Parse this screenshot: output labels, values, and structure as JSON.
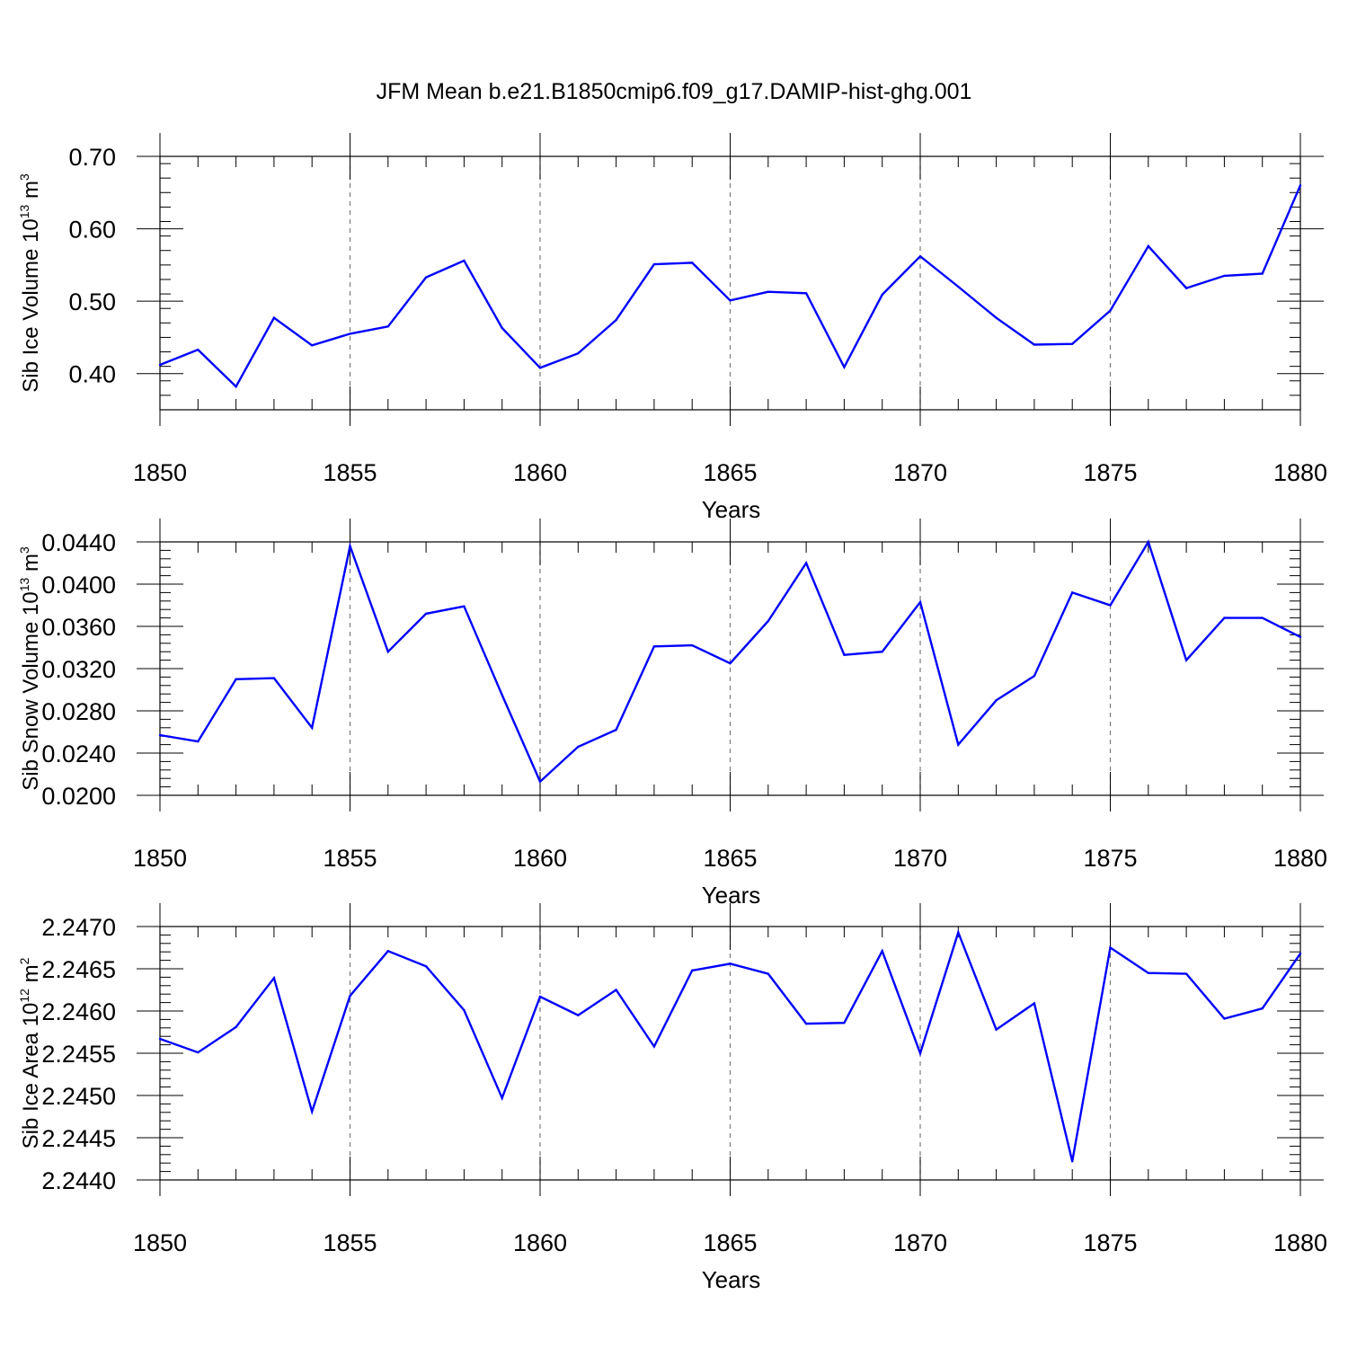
{
  "chart_data": [
    {
      "type": "line",
      "title": "JFM Mean b.e21.B1850cmip6.f09_g17.DAMIP-hist-ghg.001",
      "ylabel": {
        "main": "Sib Ice Volume 10",
        "exp1": "13",
        "unit": " m",
        "exp2": "3"
      },
      "xlabel": "Years",
      "x": [
        1850,
        1851,
        1852,
        1853,
        1854,
        1855,
        1856,
        1857,
        1858,
        1859,
        1860,
        1861,
        1862,
        1863,
        1864,
        1865,
        1866,
        1867,
        1868,
        1869,
        1870,
        1871,
        1872,
        1873,
        1874,
        1875,
        1876,
        1877,
        1878,
        1879,
        1880
      ],
      "values": [
        0.412,
        0.433,
        0.382,
        0.477,
        0.439,
        0.455,
        0.465,
        0.533,
        0.556,
        0.463,
        0.408,
        0.428,
        0.474,
        0.551,
        0.553,
        0.501,
        0.513,
        0.511,
        0.409,
        0.509,
        0.562,
        0.52,
        0.477,
        0.44,
        0.441,
        0.487,
        0.576,
        0.518,
        0.535,
        0.538,
        0.66
      ],
      "xlim": [
        1850,
        1880
      ],
      "ylim": [
        0.35,
        0.7
      ],
      "xticks": [
        1850,
        1855,
        1860,
        1865,
        1870,
        1875,
        1880
      ],
      "xtick_labels": [
        "1850",
        "1855",
        "1860",
        "1865",
        "1870",
        "1875",
        "1880"
      ],
      "yticks": [
        0.4,
        0.5,
        0.6,
        0.7
      ],
      "ytick_labels": [
        "0.40",
        "0.50",
        "0.60",
        "0.70"
      ],
      "line_color": "#0000ff",
      "grid": "vertical dashed at major x ticks"
    },
    {
      "type": "line",
      "title": "",
      "ylabel": {
        "main": "Sib Snow Volume 10",
        "exp1": "13",
        "unit": " m",
        "exp2": "3"
      },
      "xlabel": "Years",
      "x": [
        1850,
        1851,
        1852,
        1853,
        1854,
        1855,
        1856,
        1857,
        1858,
        1859,
        1860,
        1861,
        1862,
        1863,
        1864,
        1865,
        1866,
        1867,
        1868,
        1869,
        1870,
        1871,
        1872,
        1873,
        1874,
        1875,
        1876,
        1877,
        1878,
        1879,
        1880
      ],
      "values": [
        0.0257,
        0.0251,
        0.031,
        0.0311,
        0.0264,
        0.0436,
        0.0336,
        0.0372,
        0.0379,
        0.0295,
        0.0213,
        0.0246,
        0.0262,
        0.0341,
        0.0342,
        0.0325,
        0.0365,
        0.042,
        0.0333,
        0.0336,
        0.0383,
        0.0248,
        0.029,
        0.0313,
        0.0392,
        0.038,
        0.044,
        0.0328,
        0.0368,
        0.0368,
        0.035
      ],
      "xlim": [
        1850,
        1880
      ],
      "ylim": [
        0.02,
        0.044
      ],
      "xticks": [
        1850,
        1855,
        1860,
        1865,
        1870,
        1875,
        1880
      ],
      "xtick_labels": [
        "1850",
        "1855",
        "1860",
        "1865",
        "1870",
        "1875",
        "1880"
      ],
      "yticks": [
        0.02,
        0.024,
        0.028,
        0.032,
        0.036,
        0.04,
        0.044
      ],
      "ytick_labels": [
        "0.0200",
        "0.0240",
        "0.0280",
        "0.0320",
        "0.0360",
        "0.0400",
        "0.0440"
      ],
      "line_color": "#0000ff",
      "grid": "vertical dashed at major x ticks"
    },
    {
      "type": "line",
      "title": "",
      "ylabel": {
        "main": "Sib Ice Area 10",
        "exp1": "12",
        "unit": " m",
        "exp2": "2"
      },
      "xlabel": "Years",
      "x": [
        1850,
        1851,
        1852,
        1853,
        1854,
        1855,
        1856,
        1857,
        1858,
        1859,
        1860,
        1861,
        1862,
        1863,
        1864,
        1865,
        1866,
        1867,
        1868,
        1869,
        1870,
        1871,
        1872,
        1873,
        1874,
        1875,
        1876,
        1877,
        1878,
        1879,
        1880
      ],
      "values": [
        2.24567,
        2.24551,
        2.24581,
        2.24639,
        2.24481,
        2.24618,
        2.24671,
        2.24653,
        2.24601,
        2.24497,
        2.24617,
        2.24595,
        2.24625,
        2.24558,
        2.24648,
        2.24656,
        2.24644,
        2.24585,
        2.24586,
        2.24671,
        2.2455,
        2.24693,
        2.24578,
        2.24609,
        2.24422,
        2.24675,
        2.24645,
        2.24644,
        2.24591,
        2.24603,
        2.24668
      ],
      "xlim": [
        1850,
        1880
      ],
      "ylim": [
        2.244,
        2.247
      ],
      "xticks": [
        1850,
        1855,
        1860,
        1865,
        1870,
        1875,
        1880
      ],
      "xtick_labels": [
        "1850",
        "1855",
        "1860",
        "1865",
        "1870",
        "1875",
        "1880"
      ],
      "yticks": [
        2.244,
        2.2445,
        2.245,
        2.2455,
        2.246,
        2.2465,
        2.247
      ],
      "ytick_labels": [
        "2.2440",
        "2.2445",
        "2.2450",
        "2.2455",
        "2.2460",
        "2.2465",
        "2.2470"
      ],
      "line_color": "#0000ff",
      "grid": "vertical dashed at major x ticks"
    }
  ]
}
